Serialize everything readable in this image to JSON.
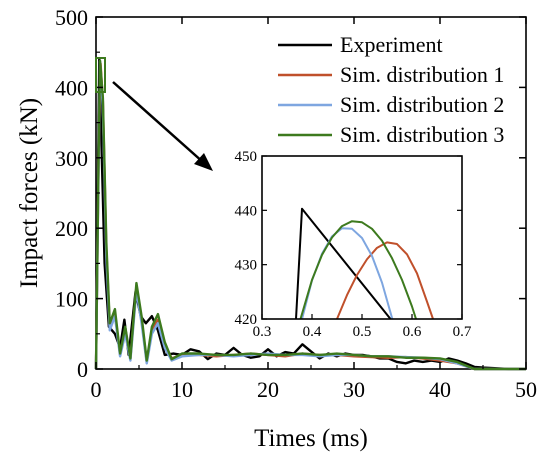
{
  "chart_data": {
    "type": "line",
    "xlabel": "Times (ms)",
    "ylabel": "Impact forces (kN)",
    "xlim": [
      0,
      50
    ],
    "ylim": [
      0,
      500
    ],
    "xticks": [
      "0",
      "10",
      "20",
      "30",
      "40",
      "50"
    ],
    "yticks": [
      "0",
      "100",
      "200",
      "300",
      "400",
      "500"
    ],
    "grid": false,
    "legend_position": "top-right",
    "series": [
      {
        "name": "Experiment",
        "color": "#000000",
        "points": [
          [
            0,
            0
          ],
          [
            0.38,
            440
          ],
          [
            1.0,
            150
          ],
          [
            1.5,
            60
          ],
          [
            2.2,
            50
          ],
          [
            2.8,
            30
          ],
          [
            3.3,
            70
          ],
          [
            3.8,
            20
          ],
          [
            4.6,
            110
          ],
          [
            5.2,
            75
          ],
          [
            5.8,
            65
          ],
          [
            6.5,
            75
          ],
          [
            7.2,
            55
          ],
          [
            8.0,
            20
          ],
          [
            9.0,
            22
          ],
          [
            10.0,
            20
          ],
          [
            11.0,
            28
          ],
          [
            12.0,
            25
          ],
          [
            13.0,
            14
          ],
          [
            14.0,
            22
          ],
          [
            15.0,
            20
          ],
          [
            16.0,
            30
          ],
          [
            17.0,
            20
          ],
          [
            18.0,
            16
          ],
          [
            19.0,
            18
          ],
          [
            20.0,
            28
          ],
          [
            21.0,
            18
          ],
          [
            22.0,
            24
          ],
          [
            23.0,
            22
          ],
          [
            24.0,
            35
          ],
          [
            25.0,
            25
          ],
          [
            26.0,
            15
          ],
          [
            27.0,
            22
          ],
          [
            28.0,
            18
          ],
          [
            29.0,
            22
          ],
          [
            30.0,
            20
          ],
          [
            31.0,
            20
          ],
          [
            32.0,
            18
          ],
          [
            33.0,
            15
          ],
          [
            34.0,
            15
          ],
          [
            35.0,
            10
          ],
          [
            36.0,
            8
          ],
          [
            37.0,
            12
          ],
          [
            38.0,
            10
          ],
          [
            39.0,
            12
          ],
          [
            40.0,
            10
          ],
          [
            41.0,
            15
          ],
          [
            42.0,
            12
          ],
          [
            43.0,
            8
          ],
          [
            44.0,
            3
          ],
          [
            45.0,
            2
          ],
          [
            48.0,
            0
          ],
          [
            50.0,
            0
          ]
        ]
      },
      {
        "name": "Sim. distribution 1",
        "color": "#c0502b",
        "points": [
          [
            0,
            0
          ],
          [
            0.3,
            300
          ],
          [
            0.53,
            434
          ],
          [
            0.8,
            380
          ],
          [
            1.2,
            170
          ],
          [
            1.6,
            60
          ],
          [
            2.2,
            80
          ],
          [
            2.8,
            20
          ],
          [
            3.4,
            55
          ],
          [
            4.0,
            15
          ],
          [
            4.7,
            118
          ],
          [
            5.3,
            70
          ],
          [
            5.9,
            10
          ],
          [
            6.5,
            55
          ],
          [
            7.2,
            70
          ],
          [
            8.0,
            35
          ],
          [
            8.8,
            15
          ],
          [
            10.0,
            20
          ],
          [
            12.0,
            20
          ],
          [
            14.0,
            18
          ],
          [
            16.0,
            20
          ],
          [
            18.0,
            22
          ],
          [
            20.0,
            20
          ],
          [
            22.0,
            18
          ],
          [
            24.0,
            22
          ],
          [
            26.0,
            20
          ],
          [
            28.0,
            20
          ],
          [
            30.0,
            18
          ],
          [
            32.0,
            17
          ],
          [
            34.0,
            16
          ],
          [
            36.0,
            17
          ],
          [
            38.0,
            15
          ],
          [
            40.0,
            12
          ],
          [
            42.0,
            8
          ],
          [
            43.0,
            4
          ],
          [
            44.0,
            0
          ],
          [
            50.0,
            0
          ]
        ]
      },
      {
        "name": "Sim. distribution 2",
        "color": "#7ea6e0",
        "points": [
          [
            0,
            0
          ],
          [
            0.3,
            290
          ],
          [
            0.47,
            437
          ],
          [
            0.8,
            370
          ],
          [
            1.2,
            160
          ],
          [
            1.6,
            55
          ],
          [
            2.2,
            75
          ],
          [
            2.8,
            18
          ],
          [
            3.4,
            50
          ],
          [
            4.0,
            12
          ],
          [
            4.7,
            112
          ],
          [
            5.3,
            65
          ],
          [
            5.9,
            8
          ],
          [
            6.5,
            50
          ],
          [
            7.2,
            65
          ],
          [
            8.0,
            30
          ],
          [
            8.8,
            12
          ],
          [
            10.0,
            18
          ],
          [
            12.0,
            20
          ],
          [
            14.0,
            20
          ],
          [
            16.0,
            18
          ],
          [
            18.0,
            20
          ],
          [
            20.0,
            22
          ],
          [
            22.0,
            20
          ],
          [
            24.0,
            20
          ],
          [
            26.0,
            18
          ],
          [
            28.0,
            20
          ],
          [
            30.0,
            20
          ],
          [
            32.0,
            18
          ],
          [
            34.0,
            18
          ],
          [
            36.0,
            17
          ],
          [
            38.0,
            16
          ],
          [
            40.0,
            14
          ],
          [
            42.0,
            8
          ],
          [
            43.0,
            4
          ],
          [
            44.0,
            0
          ],
          [
            50.0,
            0
          ]
        ]
      },
      {
        "name": "Sim. distribution 3",
        "color": "#3d7a1e",
        "points": [
          [
            0,
            0
          ],
          [
            0.3,
            300
          ],
          [
            0.47,
            438
          ],
          [
            0.8,
            385
          ],
          [
            1.2,
            180
          ],
          [
            1.6,
            65
          ],
          [
            2.2,
            85
          ],
          [
            2.8,
            22
          ],
          [
            3.4,
            60
          ],
          [
            4.0,
            15
          ],
          [
            4.7,
            122
          ],
          [
            5.3,
            75
          ],
          [
            5.9,
            12
          ],
          [
            6.5,
            60
          ],
          [
            7.2,
            78
          ],
          [
            8.0,
            38
          ],
          [
            8.8,
            14
          ],
          [
            10.0,
            22
          ],
          [
            12.0,
            22
          ],
          [
            14.0,
            20
          ],
          [
            16.0,
            20
          ],
          [
            18.0,
            22
          ],
          [
            20.0,
            20
          ],
          [
            22.0,
            20
          ],
          [
            24.0,
            22
          ],
          [
            26.0,
            20
          ],
          [
            28.0,
            22
          ],
          [
            30.0,
            20
          ],
          [
            32.0,
            18
          ],
          [
            34.0,
            18
          ],
          [
            36.0,
            16
          ],
          [
            38.0,
            16
          ],
          [
            40.0,
            15
          ],
          [
            42.0,
            10
          ],
          [
            43.0,
            5
          ],
          [
            44.0,
            0
          ],
          [
            50.0,
            0
          ]
        ]
      }
    ],
    "inset": {
      "xlim": [
        0.3,
        0.7
      ],
      "ylim": [
        420,
        450
      ],
      "xticks": [
        "0.3",
        "0.4",
        "0.5",
        "0.6",
        "0.7"
      ],
      "yticks": [
        "420",
        "430",
        "440",
        "450"
      ],
      "series": [
        {
          "name": "Experiment",
          "color": "#000000",
          "points": [
            [
              0.368,
              420
            ],
            [
              0.38,
              440.3
            ],
            [
              0.557,
              420
            ]
          ]
        },
        {
          "name": "Sim. distribution 1",
          "color": "#c0502b",
          "points": [
            [
              0.45,
              420
            ],
            [
              0.47,
              424.4
            ],
            [
              0.49,
              428.1
            ],
            [
              0.51,
              431
            ],
            [
              0.53,
              433.1
            ],
            [
              0.55,
              434.1
            ],
            [
              0.57,
              433.8
            ],
            [
              0.59,
              431.9
            ],
            [
              0.61,
              428.4
            ],
            [
              0.63,
              423.2
            ],
            [
              0.642,
              420
            ]
          ]
        },
        {
          "name": "Sim. distribution 2",
          "color": "#7ea6e0",
          "points": [
            [
              0.38,
              420
            ],
            [
              0.4,
              427.1
            ],
            [
              0.42,
              432
            ],
            [
              0.44,
              435.2
            ],
            [
              0.46,
              436.7
            ],
            [
              0.48,
              436.6
            ],
            [
              0.5,
              434.9
            ],
            [
              0.52,
              431.6
            ],
            [
              0.54,
              426.7
            ],
            [
              0.56,
              420.2
            ],
            [
              0.561,
              420
            ]
          ]
        },
        {
          "name": "Sim. distribution 3",
          "color": "#3d7a1e",
          "points": [
            [
              0.377,
              420
            ],
            [
              0.4,
              427.2
            ],
            [
              0.42,
              431.8
            ],
            [
              0.44,
              435
            ],
            [
              0.46,
              437.1
            ],
            [
              0.48,
              438
            ],
            [
              0.5,
              437.8
            ],
            [
              0.52,
              436.6
            ],
            [
              0.54,
              434.4
            ],
            [
              0.56,
              431.2
            ],
            [
              0.58,
              427.2
            ],
            [
              0.6,
              422.3
            ],
            [
              0.608,
              420
            ]
          ]
        }
      ]
    }
  }
}
